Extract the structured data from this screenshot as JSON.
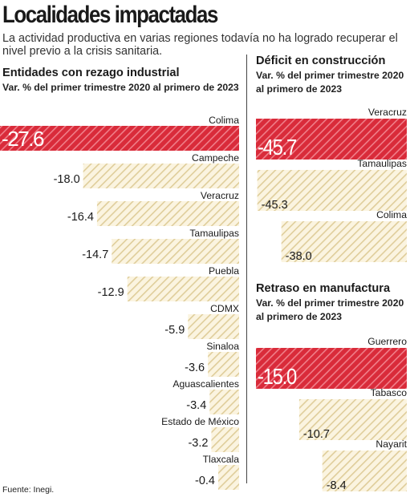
{
  "header": {
    "title": "Localidades impactadas",
    "subtitle": "La actividad productiva en varias regiones todavía no ha logrado recuperar el nivel previo a la crisis sanitaria."
  },
  "colors": {
    "highlight": "#d92b3a",
    "highlight_stripe": "#f07f8a",
    "bar_fill": "#fbf4e0",
    "bar_stripe": "#dfcd9a"
  },
  "source": "Fuente: Inegi.",
  "chart_data": [
    {
      "type": "bar",
      "orientation": "horizontal",
      "title": "Entidades con rezago industrial",
      "subtitle": "Var. % del primer trimestre 2020 al primero de 2023",
      "categories": [
        "Colima",
        "Campeche",
        "Veracruz",
        "Tamaulipas",
        "Puebla",
        "CDMX",
        "Sinaloa",
        "Aguascalientes",
        "Estado de México",
        "Tlaxcala"
      ],
      "values": [
        -27.6,
        -18.0,
        -16.4,
        -14.7,
        -12.9,
        -5.9,
        -3.6,
        -3.4,
        -3.2,
        -0.4
      ],
      "value_labels": [
        "-27.6",
        "-18.0",
        "-16.4",
        "-14.7",
        "-12.9",
        "-5.9",
        "-3.6",
        "-3.4",
        "-3.2",
        "-0.4"
      ],
      "highlight_index": 0
    },
    {
      "type": "bar",
      "orientation": "horizontal",
      "title": "Déficit en construcción",
      "subtitle": "Var. % del primer trimestre 2020 al primero de 2023",
      "categories": [
        "Veracruz",
        "Tamaulipas",
        "Colima"
      ],
      "values": [
        -45.7,
        -45.3,
        -38.0
      ],
      "value_labels": [
        "-45.7",
        "-45.3",
        "-38.0"
      ],
      "highlight_index": 0
    },
    {
      "type": "bar",
      "orientation": "horizontal",
      "title": "Retraso en manufactura",
      "subtitle": "Var. % del primer trimestre 2020 al primero de 2023",
      "categories": [
        "Guerrero",
        "Tabasco",
        "Nayarit"
      ],
      "values": [
        -15.0,
        -10.7,
        -8.4
      ],
      "value_labels": [
        "-15.0",
        "-10.7",
        "-8.4"
      ],
      "highlight_index": 0
    }
  ]
}
